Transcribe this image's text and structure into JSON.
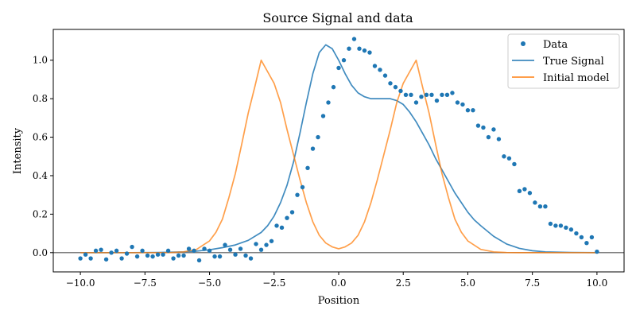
{
  "chart_data": {
    "type": "scatter",
    "title": "Source Signal and data",
    "xlabel": "Position",
    "ylabel": "Intensity",
    "xlim": [
      -11.05,
      11.05
    ],
    "ylim": [
      -0.1,
      1.16
    ],
    "xticks": [
      -10,
      -7.5,
      -5,
      -2.5,
      0,
      2.5,
      5,
      7.5,
      10
    ],
    "xtick_labels": [
      "−10.0",
      "−7.5",
      "−5.0",
      "−2.5",
      "0.0",
      "2.5",
      "5.0",
      "7.5",
      "10.0"
    ],
    "yticks": [
      0,
      0.2,
      0.4,
      0.6,
      0.8,
      1.0
    ],
    "ytick_labels": [
      "0.0",
      "0.2",
      "0.4",
      "0.6",
      "0.8",
      "1.0"
    ],
    "grid": false,
    "legend_position": "top-right",
    "baseline_y": 0,
    "series": [
      {
        "name": "Data",
        "kind": "scatter",
        "color": "#1f77b4",
        "x": [
          -10.0,
          -9.8,
          -9.6,
          -9.4,
          -9.2,
          -9.0,
          -8.8,
          -8.6,
          -8.4,
          -8.2,
          -8.0,
          -7.8,
          -7.6,
          -7.4,
          -7.2,
          -7.0,
          -6.8,
          -6.6,
          -6.4,
          -6.2,
          -6.0,
          -5.8,
          -5.6,
          -5.4,
          -5.2,
          -5.0,
          -4.8,
          -4.6,
          -4.4,
          -4.2,
          -4.0,
          -3.8,
          -3.6,
          -3.4,
          -3.2,
          -3.0,
          -2.8,
          -2.6,
          -2.4,
          -2.2,
          -2.0,
          -1.8,
          -1.6,
          -1.4,
          -1.2,
          -1.0,
          -0.8,
          -0.6,
          -0.4,
          -0.2,
          0.0,
          0.2,
          0.4,
          0.6,
          0.8,
          1.0,
          1.2,
          1.4,
          1.6,
          1.8,
          2.0,
          2.2,
          2.4,
          2.6,
          2.8,
          3.0,
          3.2,
          3.4,
          3.6,
          3.8,
          4.0,
          4.2,
          4.4,
          4.6,
          4.8,
          5.0,
          5.2,
          5.4,
          5.6,
          5.8,
          6.0,
          6.2,
          6.4,
          6.6,
          6.8,
          7.0,
          7.2,
          7.4,
          7.6,
          7.8,
          8.0,
          8.2,
          8.4,
          8.6,
          8.8,
          9.0,
          9.2,
          9.4,
          9.6,
          9.8,
          10.0
        ],
        "y": [
          -0.03,
          -0.01,
          -0.03,
          0.01,
          0.015,
          -0.035,
          0.0,
          0.01,
          -0.03,
          -0.005,
          0.03,
          -0.02,
          0.01,
          -0.015,
          -0.02,
          -0.01,
          -0.01,
          0.01,
          -0.03,
          -0.015,
          -0.015,
          0.02,
          0.01,
          -0.04,
          0.02,
          0.01,
          -0.02,
          -0.02,
          0.04,
          0.015,
          -0.01,
          0.02,
          -0.015,
          -0.03,
          0.045,
          0.015,
          0.04,
          0.06,
          0.14,
          0.13,
          0.18,
          0.21,
          0.3,
          0.34,
          0.44,
          0.54,
          0.6,
          0.71,
          0.78,
          0.86,
          0.96,
          1.0,
          1.06,
          1.11,
          1.06,
          1.05,
          1.04,
          0.97,
          0.95,
          0.92,
          0.88,
          0.86,
          0.84,
          0.82,
          0.82,
          0.78,
          0.81,
          0.82,
          0.82,
          0.79,
          0.82,
          0.82,
          0.83,
          0.78,
          0.77,
          0.74,
          0.74,
          0.66,
          0.65,
          0.6,
          0.64,
          0.59,
          0.5,
          0.49,
          0.46,
          0.32,
          0.33,
          0.31,
          0.26,
          0.24,
          0.24,
          0.15,
          0.14,
          0.14,
          0.13,
          0.12,
          0.1,
          0.08,
          0.05,
          0.08,
          0.005
        ]
      },
      {
        "name": "True Signal",
        "kind": "line",
        "color": "#1f77b4",
        "x": [
          -10,
          -9,
          -8,
          -7,
          -6,
          -5.5,
          -5,
          -4.5,
          -4,
          -3.5,
          -3,
          -2.75,
          -2.5,
          -2.25,
          -2,
          -1.75,
          -1.5,
          -1.25,
          -1,
          -0.75,
          -0.5,
          -0.25,
          0,
          0.25,
          0.5,
          0.75,
          1,
          1.25,
          1.5,
          1.75,
          2,
          2.25,
          2.5,
          2.75,
          3,
          3.25,
          3.5,
          3.75,
          4,
          4.25,
          4.5,
          4.75,
          5,
          5.25,
          5.5,
          6,
          6.5,
          7,
          7.5,
          8,
          9,
          10
        ],
        "y": [
          0,
          0,
          0,
          0.001,
          0.004,
          0.008,
          0.015,
          0.026,
          0.04,
          0.064,
          0.105,
          0.14,
          0.19,
          0.26,
          0.35,
          0.47,
          0.62,
          0.78,
          0.93,
          1.04,
          1.08,
          1.06,
          1.0,
          0.93,
          0.87,
          0.83,
          0.81,
          0.8,
          0.8,
          0.8,
          0.8,
          0.79,
          0.77,
          0.73,
          0.68,
          0.62,
          0.56,
          0.49,
          0.43,
          0.37,
          0.31,
          0.26,
          0.21,
          0.17,
          0.14,
          0.085,
          0.045,
          0.022,
          0.01,
          0.004,
          0.001,
          0
        ]
      },
      {
        "name": "Initial model",
        "kind": "line",
        "color": "#ff7f0e",
        "x": [
          -10,
          -9,
          -8,
          -7,
          -6.5,
          -6,
          -5.5,
          -5,
          -4.75,
          -4.5,
          -4.25,
          -4,
          -3.75,
          -3.5,
          -3.25,
          -3,
          -2.75,
          -2.5,
          -2.25,
          -2,
          -1.75,
          -1.5,
          -1.25,
          -1,
          -0.75,
          -0.5,
          -0.25,
          0,
          0.25,
          0.5,
          0.75,
          1,
          1.25,
          1.5,
          1.75,
          2,
          2.25,
          2.5,
          2.75,
          3,
          3.25,
          3.5,
          3.75,
          4,
          4.25,
          4.5,
          4.75,
          5,
          5.5,
          6,
          6.5,
          7,
          8,
          9,
          10
        ],
        "y": [
          0,
          0,
          0,
          0,
          0.0005,
          0.004,
          0.017,
          0.061,
          0.106,
          0.174,
          0.286,
          0.411,
          0.566,
          0.726,
          0.86,
          1.0,
          0.94,
          0.88,
          0.78,
          0.64,
          0.51,
          0.38,
          0.26,
          0.16,
          0.09,
          0.05,
          0.03,
          0.02,
          0.03,
          0.05,
          0.09,
          0.16,
          0.26,
          0.38,
          0.51,
          0.64,
          0.78,
          0.88,
          0.94,
          1.0,
          0.86,
          0.726,
          0.566,
          0.411,
          0.286,
          0.174,
          0.106,
          0.061,
          0.017,
          0.004,
          0.0005,
          0,
          0,
          0,
          0
        ]
      }
    ]
  }
}
